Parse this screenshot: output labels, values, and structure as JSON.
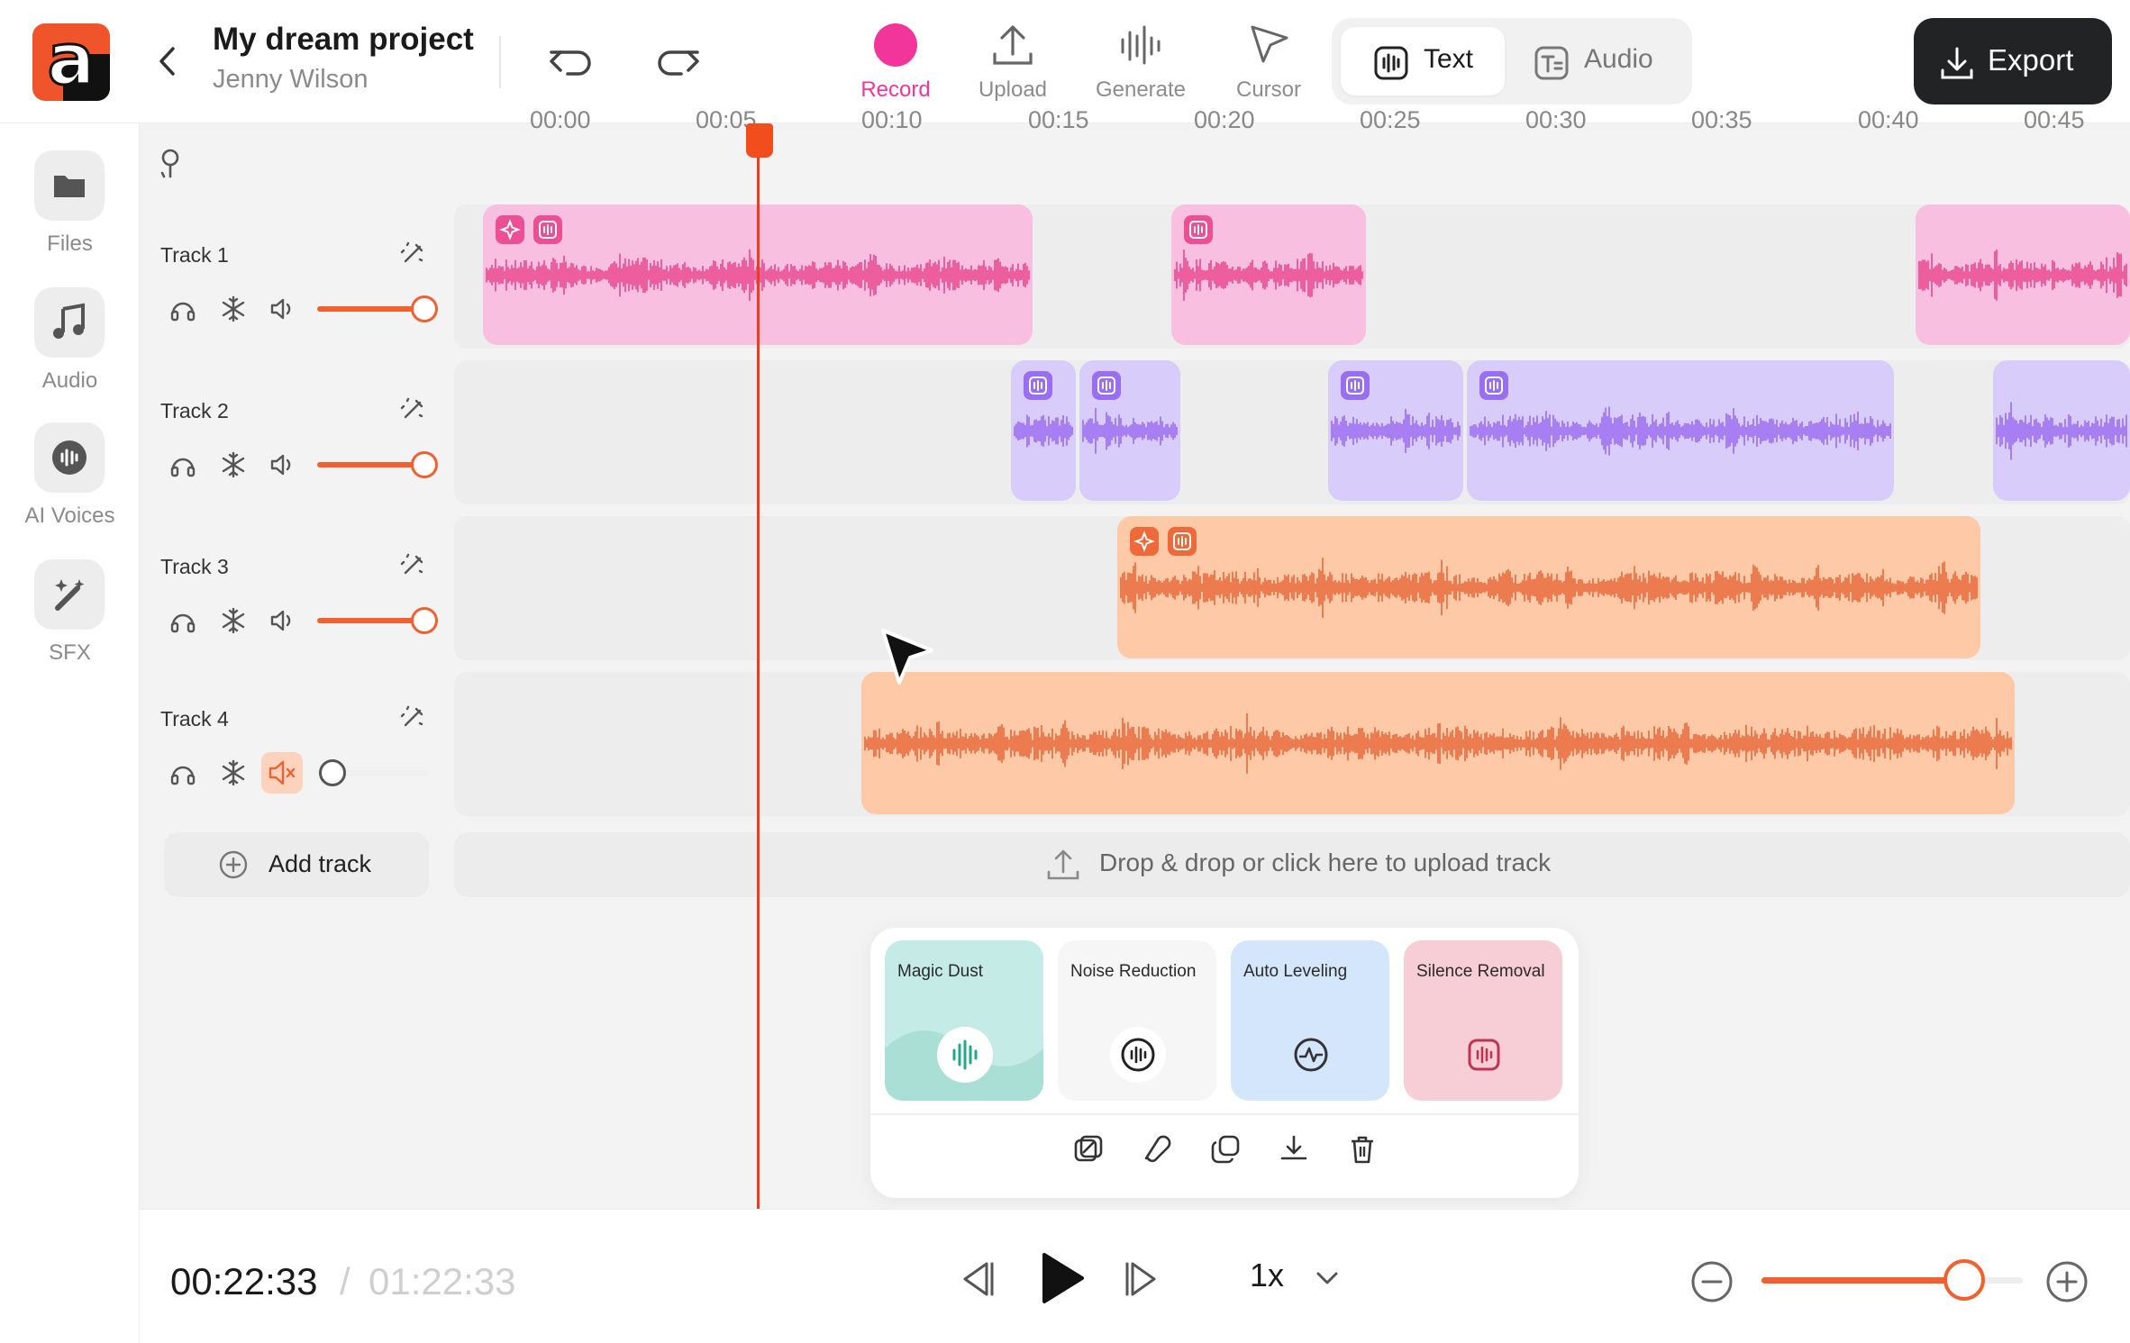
{
  "app": {
    "logo_letter": "a"
  },
  "header": {
    "title": "My dream project",
    "user": "Jenny Wilson"
  },
  "toolbar": {
    "tools": [
      {
        "id": "record",
        "label": "Record",
        "color": "#f2359a"
      },
      {
        "id": "upload",
        "label": "Upload"
      },
      {
        "id": "generate",
        "label": "Generate"
      },
      {
        "id": "cursor",
        "label": "Cursor"
      }
    ],
    "modes": [
      {
        "id": "text",
        "label": "Text",
        "active": true
      },
      {
        "id": "audio",
        "label": "Audio",
        "active": false
      }
    ],
    "export_label": "Export"
  },
  "sidebar": {
    "items": [
      {
        "id": "files",
        "label": "Files",
        "icon": "folder-icon"
      },
      {
        "id": "audio",
        "label": "Audio",
        "icon": "music-note-icon"
      },
      {
        "id": "ai-voices",
        "label": "AI Voices",
        "icon": "voice-wave-icon"
      },
      {
        "id": "sfx",
        "label": "SFX",
        "icon": "magic-wand-icon"
      }
    ]
  },
  "timeline": {
    "ticks": [
      "00:00",
      "00:05",
      "00:10",
      "00:15",
      "00:20",
      "00:25",
      "00:30",
      "00:35",
      "00:40",
      "00:45"
    ],
    "tracks": [
      {
        "name": "Track 1",
        "volume": 1.0,
        "muted": false,
        "color": "#f9bfe0"
      },
      {
        "name": "Track 2",
        "volume": 1.0,
        "muted": false,
        "color": "#d8ccfa"
      },
      {
        "name": "Track 3",
        "volume": 1.0,
        "muted": false,
        "color": "#fdc9a6"
      },
      {
        "name": "Track 4",
        "volume": 0.0,
        "muted": true,
        "color": "#fdc9a6"
      }
    ],
    "add_track_label": "Add track",
    "dropzone_label": "Drop & drop or click here to upload track"
  },
  "effects": {
    "cards": [
      {
        "id": "magic-dust",
        "label": "Magic Dust",
        "color": "#c4ebe5"
      },
      {
        "id": "noise-reduction",
        "label": "Noise Reduction",
        "color": "#f6f6f6"
      },
      {
        "id": "auto-leveling",
        "label": "Auto Leveling",
        "color": "#d4e6fb"
      },
      {
        "id": "silence-removal",
        "label": "Silence Removal",
        "color": "#f7cdd6"
      }
    ],
    "actions": [
      "replace-icon",
      "magnet-icon",
      "duplicate-icon",
      "download-icon",
      "trash-icon"
    ]
  },
  "player": {
    "current_time": "00:22:33",
    "separator": "/",
    "total_time": "01:22:33",
    "speed": "1x",
    "zoom": 0.8
  }
}
